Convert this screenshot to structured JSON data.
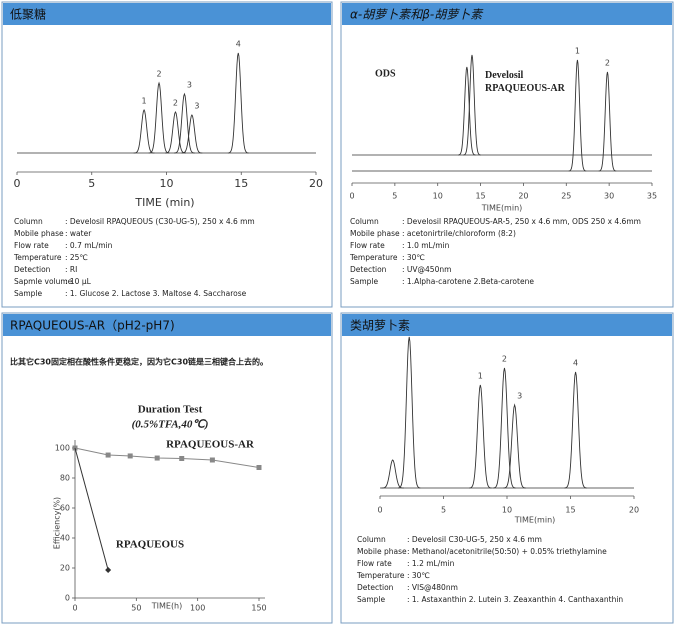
{
  "panels": [
    {
      "title": "低聚糖",
      "info": [
        {
          "key": "Column",
          "value": ": Develosil RPAQUEOUS (C30-UG-5), 250 x 4.6 mm"
        },
        {
          "key": "Mobile phase",
          "value": ": water"
        },
        {
          "key": "Flow rate",
          "value": ": 0.7 mL/min"
        },
        {
          "key": "Temperature",
          "value": ": 25℃"
        },
        {
          "key": "Detection",
          "value": ": RI"
        },
        {
          "key": "Sapmle volume",
          "value": ": 10 μL"
        },
        {
          "key": "Sample",
          "value": ": 1. Glucose    2. Lactose    3. Maltose    4. Saccharose"
        }
      ]
    },
    {
      "title": "α-胡萝卜素和β-胡萝卜素",
      "info": [
        {
          "key": "Column",
          "value": ": Develosil RPAQUEOUS-AR-5, 250 x 4.6 mm,   ODS 250 x 4.6mm"
        },
        {
          "key": "Mobile phase",
          "value": ": acetonirtrile/chloroform (8:2)"
        },
        {
          "key": "Flow rate",
          "value": ": 1.0 mL/min"
        },
        {
          "key": "Temperature",
          "value": ": 30℃"
        },
        {
          "key": "Detection",
          "value": ": UV@450nm"
        },
        {
          "key": "Sample",
          "value": ": 1.Alpha-carotene    2.Beta-carotene"
        }
      ]
    },
    {
      "title": "RPAQUEOUS-AR（pH2-pH7)",
      "note": "比其它C30固定相在酸性条件更稳定，因为它C30链是三相键合上去的。"
    },
    {
      "title": "类胡萝卜素",
      "info": [
        {
          "key": "Column",
          "value": ": Develosil C30-UG-5,   250 x 4.6 mm"
        },
        {
          "key": "Mobile phase",
          "value": ": Methanol/acetonitrile(50:50) + 0.05% triethylamine"
        },
        {
          "key": "Flow rate",
          "value": ": 1.2 mL/min"
        },
        {
          "key": "Temperature",
          "value": ": 30℃"
        },
        {
          "key": "Detection",
          "value": ": VIS@480nm"
        },
        {
          "key": "Sample",
          "value": ": 1. Astaxanthin    2. Lutein    3. Zeaxanthin    4. Canthaxanthin"
        }
      ]
    }
  ],
  "chart_data": [
    {
      "type": "chromatogram",
      "x_label": "TIME (min)",
      "xlim": [
        0,
        20
      ],
      "xticks": [
        0,
        5,
        10,
        15,
        20
      ],
      "series": [
        {
          "color": "#333333",
          "x": [
            8.5,
            9.5,
            10.6,
            11.2,
            11.7,
            14.8
          ],
          "values": [
            43,
            70,
            41,
            59,
            38,
            100
          ],
          "peak_labels": [
            "1",
            "2",
            "2",
            "3",
            "3",
            "4"
          ]
        }
      ]
    },
    {
      "type": "chromatogram",
      "x_label": "TIME(min)",
      "xlim": [
        0,
        35
      ],
      "xticks": [
        0,
        5,
        10,
        15,
        20,
        25,
        30,
        35
      ],
      "series": [
        {
          "name": "ODS",
          "color": "#333333",
          "x": [
            13.4,
            14.0
          ],
          "values": [
            88,
            100
          ],
          "peak_labels": [
            null,
            null
          ]
        },
        {
          "name": "Develosil RPAQUEOUS-AR",
          "color": "#333333",
          "x": [
            26.3,
            29.8
          ],
          "values": [
            111,
            99
          ],
          "peak_labels": [
            "1",
            "2"
          ]
        }
      ]
    },
    {
      "type": "line",
      "title": "Duration Test",
      "subtitle": "(0.5%TFA,40℃)",
      "x_label": "TIME(h)",
      "y_label": "Efficiency(%)",
      "xlim": [
        0,
        150
      ],
      "xticks": [
        0,
        50,
        100,
        150
      ],
      "ylim": [
        0,
        100
      ],
      "yticks": [
        0,
        20,
        40,
        60,
        80,
        100
      ],
      "series": [
        {
          "name": "RPAQUEOUS-AR",
          "color": "#888888",
          "marker": "square",
          "x": [
            0,
            27,
            45,
            67,
            87,
            112,
            150
          ],
          "values": [
            100,
            95.3,
            94.7,
            93.3,
            93,
            92,
            87
          ]
        },
        {
          "name": "RPAQUEOUS",
          "color": "#333333",
          "marker": "diamond",
          "x": [
            0,
            27
          ],
          "values": [
            100,
            18.7
          ]
        }
      ]
    },
    {
      "type": "chromatogram",
      "x_label": "TIME(min)",
      "xlim": [
        0,
        20
      ],
      "xticks": [
        0,
        5,
        10,
        15,
        20
      ],
      "series": [
        {
          "color": "#333333",
          "x": [
            1.0,
            2.3,
            7.9,
            9.8,
            10.6,
            15.4
          ],
          "values": [
            28,
            151,
            103,
            120,
            83,
            116
          ],
          "peak_labels": [
            null,
            null,
            "1",
            "2",
            "3",
            "4"
          ]
        }
      ]
    }
  ]
}
